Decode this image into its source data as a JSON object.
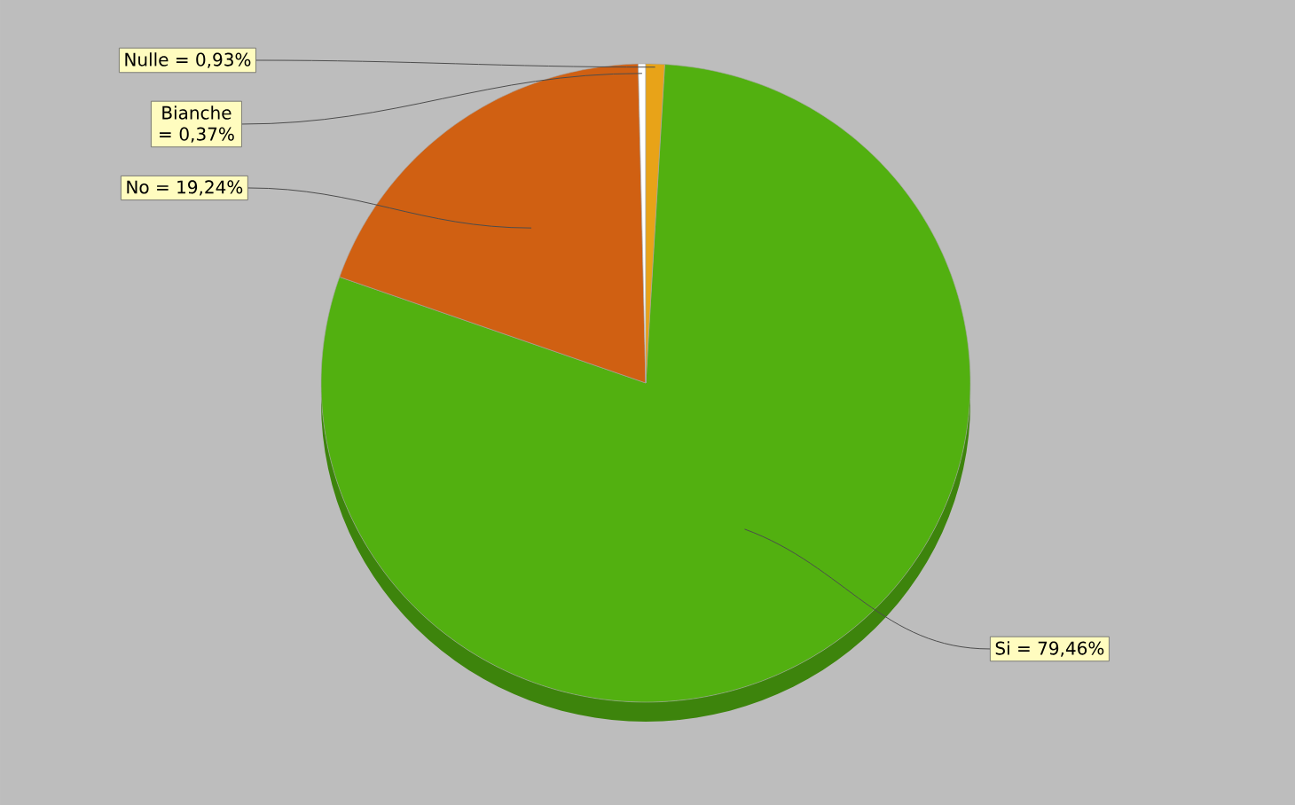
{
  "chart_data": {
    "type": "pie",
    "categories": [
      "Si = 79,46%",
      "No = 19,24%",
      "Bianche = 0,37%",
      "Nulle = 0,93%"
    ],
    "values": [
      79.46,
      19.24,
      0.37,
      0.93
    ],
    "colors": [
      "#52b010",
      "#d06012",
      "#ffffff",
      "#e8a318"
    ]
  }
}
